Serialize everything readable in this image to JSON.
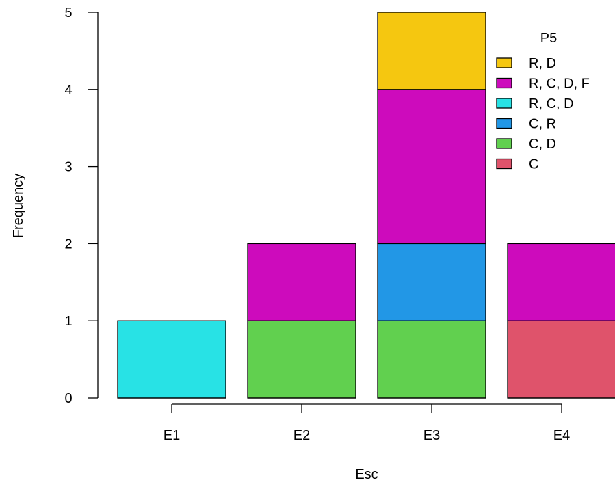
{
  "chart_data": {
    "type": "bar",
    "stacked": true,
    "categories": [
      "E1",
      "E2",
      "E3",
      "E4"
    ],
    "series": [
      {
        "name": "C",
        "color": "#DF536B",
        "values": [
          0,
          0,
          0,
          1
        ]
      },
      {
        "name": "C, D",
        "color": "#61D04F",
        "values": [
          0,
          1,
          1,
          0
        ]
      },
      {
        "name": "C, R",
        "color": "#2297E6",
        "values": [
          0,
          0,
          1,
          0
        ]
      },
      {
        "name": "R, C, D",
        "color": "#28E2E5",
        "values": [
          1,
          0,
          0,
          0
        ]
      },
      {
        "name": "R, C, D, F",
        "color": "#CD0BBC",
        "values": [
          0,
          1,
          2,
          1
        ]
      },
      {
        "name": "R, D",
        "color": "#F5C710",
        "values": [
          0,
          0,
          1,
          0
        ]
      }
    ],
    "xlabel": "Esc",
    "ylabel": "Frequency",
    "ylim": [
      0,
      5
    ],
    "yticks": [
      "0",
      "1",
      "2",
      "3",
      "4",
      "5"
    ],
    "legend": {
      "title": "P5",
      "position": "top-right",
      "entries": [
        "R, D",
        "R, C, D, F",
        "R, C, D",
        "C, R",
        "C, D",
        "C"
      ]
    },
    "grid": false
  }
}
